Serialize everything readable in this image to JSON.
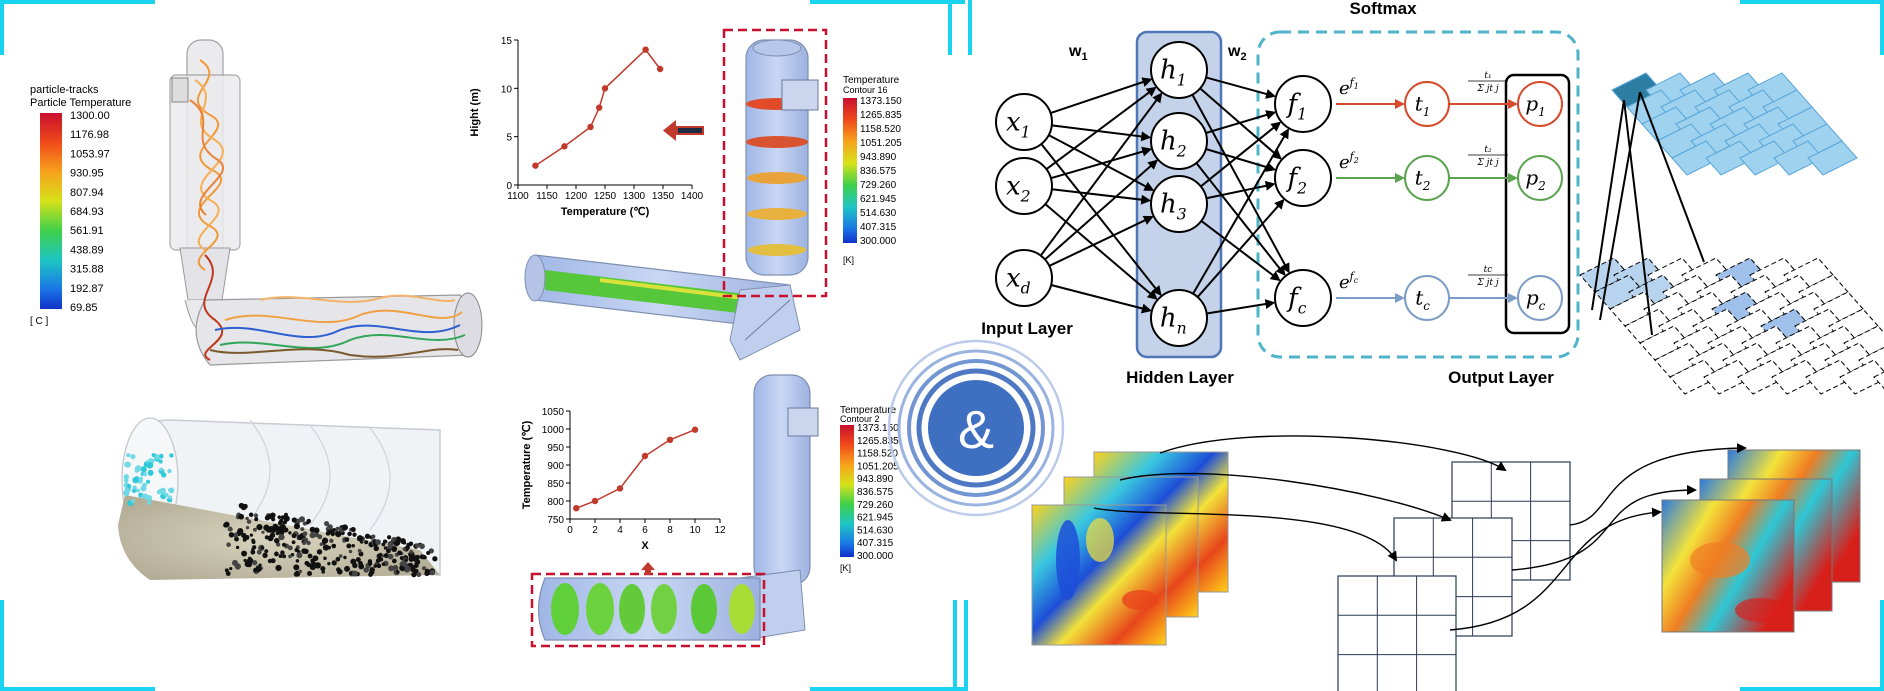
{
  "panel1": {
    "legend_title": "particle-tracks",
    "legend_subtitle": "Particle Temperature",
    "legend_values": [
      "1300.00",
      "1176.98",
      "1053.97",
      "930.95",
      "807.94",
      "684.93",
      "561.91",
      "438.89",
      "315.88",
      "192.87",
      "69.85"
    ],
    "legend_unit": "[ C ]"
  },
  "panel2": {
    "chart_data": {
      "type": "line",
      "x": [
        1130,
        1180,
        1225,
        1240,
        1250,
        1320,
        1345
      ],
      "y": [
        2,
        4,
        6,
        8,
        10,
        14,
        12
      ],
      "xlabel": "Temperature (℃)",
      "ylabel": "Hight (m)",
      "xticks": [
        1100,
        1150,
        1200,
        1250,
        1300,
        1350,
        1400
      ],
      "yticks": [
        0,
        5,
        10,
        15
      ],
      "xlim": [
        1100,
        1400
      ],
      "ylim": [
        0,
        15
      ],
      "color": "#c0392b"
    },
    "legend_title": "Temperature",
    "legend_subtitle": "Contour 16",
    "legend_values": [
      "1373.150",
      "1265.835",
      "1158.520",
      "1051.205",
      "943.890",
      "836.575",
      "729.260",
      "621.945",
      "514.630",
      "407.315",
      "300.000"
    ],
    "legend_unit": "[K]"
  },
  "panel4": {
    "chart_data": {
      "type": "line",
      "x": [
        0.5,
        2,
        4,
        6,
        8,
        10
      ],
      "y": [
        780,
        800,
        835,
        925,
        970,
        998
      ],
      "xlabel": "X",
      "ylabel": "Temperature (℃)",
      "xticks": [
        0,
        2,
        4,
        6,
        8,
        10,
        12
      ],
      "yticks": [
        750,
        800,
        850,
        900,
        950,
        1000,
        1050
      ],
      "xlim": [
        0,
        12
      ],
      "ylim": [
        750,
        1050
      ],
      "color": "#c0392b"
    },
    "legend_title": "Temperature",
    "legend_subtitle": "Contour 2",
    "legend_values": [
      "1373.150",
      "1265.835",
      "1158.520",
      "1051.205",
      "943.890",
      "836.575",
      "729.260",
      "621.945",
      "514.630",
      "407.315",
      "300.000"
    ],
    "legend_unit": "[K]"
  },
  "center_symbol": "&",
  "network": {
    "title": "Softmax",
    "w1": "w",
    "w1_sub": "1",
    "w2": "w",
    "w2_sub": "2",
    "input_label": "Input Layer",
    "hidden_label": "Hidden Layer",
    "output_label": "Output Layer",
    "inputs": [
      {
        "base": "x",
        "sub": "1"
      },
      {
        "base": "x",
        "sub": "2"
      },
      {
        "base": "x",
        "sub": "d"
      }
    ],
    "hidden": [
      {
        "base": "h",
        "sub": "1"
      },
      {
        "base": "h",
        "sub": "2"
      },
      {
        "base": "h",
        "sub": "3"
      },
      {
        "base": "h",
        "sub": "n"
      }
    ],
    "f_nodes": [
      {
        "base": "f",
        "sub": "1"
      },
      {
        "base": "f",
        "sub": "2"
      },
      {
        "base": "f",
        "sub": "c"
      }
    ],
    "exps": [
      {
        "base": "e",
        "sup": "f",
        "supsub": "1"
      },
      {
        "base": "e",
        "sup": "f",
        "supsub": "2"
      },
      {
        "base": "e",
        "sup": "f",
        "supsub": "c"
      }
    ],
    "t_nodes": [
      {
        "base": "t",
        "sub": "1"
      },
      {
        "base": "t",
        "sub": "2"
      },
      {
        "base": "t",
        "sub": "c"
      }
    ],
    "fractions": [
      {
        "num": "t₁",
        "den": "Σ jt j"
      },
      {
        "num": "t₂",
        "den": "Σ jt j"
      },
      {
        "num": "tc",
        "den": "Σ jt j"
      }
    ],
    "p_nodes": [
      {
        "base": "p",
        "sub": "1"
      },
      {
        "base": "p",
        "sub": "2"
      },
      {
        "base": "p",
        "sub": "c"
      }
    ],
    "row_colors": [
      "#d44a2a",
      "#5aa34f",
      "#7a9cc6"
    ]
  },
  "colors": {
    "frame": "#19d3f0",
    "hidden_box": "#c5d3ea",
    "hidden_border": "#4f76b5",
    "softmax_border": "#4fb3c9",
    "accent_red": "#c0392b"
  }
}
